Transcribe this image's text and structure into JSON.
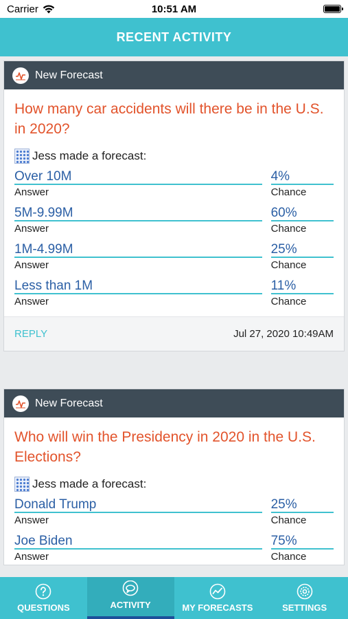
{
  "status_bar": {
    "carrier": "Carrier",
    "time": "10:51 AM"
  },
  "nav": {
    "title": "RECENT ACTIVITY"
  },
  "cards": [
    {
      "header_label": "New Forecast",
      "question": "How many car accidents will there be in the U.S. in 2020?",
      "forecaster_text": "Jess made a forecast:",
      "answers": [
        {
          "answer": "Over 10M",
          "answer_label": "Answer",
          "chance": "4%",
          "chance_label": "Chance"
        },
        {
          "answer": "5M-9.99M",
          "answer_label": "Answer",
          "chance": "60%",
          "chance_label": "Chance"
        },
        {
          "answer": "1M-4.99M",
          "answer_label": "Answer",
          "chance": "25%",
          "chance_label": "Chance"
        },
        {
          "answer": "Less than 1M",
          "answer_label": "Answer",
          "chance": "11%",
          "chance_label": "Chance"
        }
      ],
      "reply_label": "REPLY",
      "timestamp": "Jul 27, 2020 10:49AM"
    },
    {
      "header_label": "New Forecast",
      "question": "Who will win the Presidency in 2020 in the U.S. Elections?",
      "forecaster_text": "Jess made a forecast:",
      "answers": [
        {
          "answer": "Donald Trump",
          "answer_label": "Answer",
          "chance": "25%",
          "chance_label": "Chance"
        },
        {
          "answer": "Joe Biden",
          "answer_label": "Answer",
          "chance": "75%",
          "chance_label": "Chance"
        }
      ]
    }
  ],
  "tabs": [
    {
      "label": "QUESTIONS",
      "icon": "question-icon",
      "active": false
    },
    {
      "label": "ACTIVITY",
      "icon": "activity-icon",
      "active": true
    },
    {
      "label": "MY FORECASTS",
      "icon": "forecasts-icon",
      "active": false
    },
    {
      "label": "SETTINGS",
      "icon": "settings-icon",
      "active": false
    }
  ],
  "colors": {
    "accent": "#3fc1cf",
    "header_dark": "#3e4c57",
    "question": "#e2532b",
    "answer": "#2b5fa5",
    "active_indicator": "#1d4f9a"
  }
}
